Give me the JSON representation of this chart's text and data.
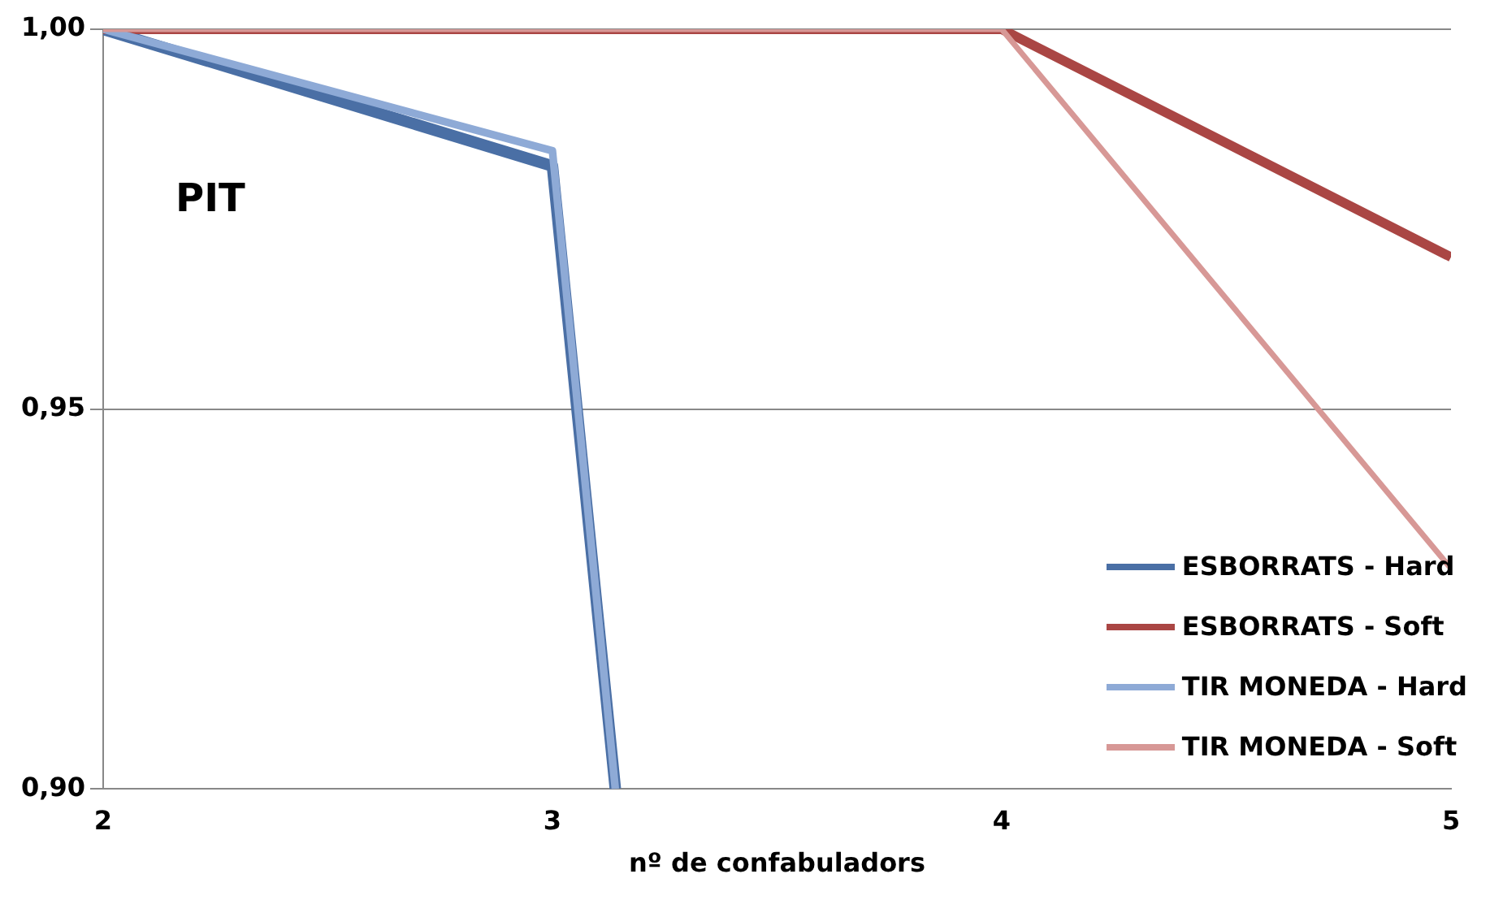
{
  "chart_data": {
    "type": "line",
    "xlabel": "nº de confabuladors",
    "ylabel": "PIT",
    "xlim": [
      2,
      5
    ],
    "xticks": [
      2,
      3,
      4,
      5
    ],
    "ylim": [
      0.9,
      1.0
    ],
    "yticks": [
      {
        "value": 0.9,
        "label": "0,90"
      },
      {
        "value": 0.95,
        "label": "0,95"
      },
      {
        "value": 1.0,
        "label": "1,00"
      }
    ],
    "grid": "y",
    "legend": "bottom right",
    "marker": "none",
    "line_style": "solid",
    "series": [
      {
        "name": "ESBORRATS - Hard",
        "color": "#4a6fa5",
        "x": [
          2,
          3,
          3.14
        ],
        "values": [
          1.0,
          0.982,
          0.9
        ]
      },
      {
        "name": "ESBORRATS - Soft",
        "color": "#aa4644",
        "x": [
          2,
          3,
          4,
          5
        ],
        "values": [
          1.0,
          1.0,
          1.0,
          0.97
        ]
      },
      {
        "name": "TIR MONEDA - Hard",
        "color": "#8eaad6",
        "x": [
          2,
          3,
          3.14
        ],
        "values": [
          1.0,
          0.984,
          0.9
        ]
      },
      {
        "name": "TIR MONEDA - Soft",
        "color": "#d79896",
        "x": [
          2,
          3,
          4,
          5
        ],
        "values": [
          1.0,
          1.0,
          1.0,
          0.929
        ]
      }
    ]
  }
}
